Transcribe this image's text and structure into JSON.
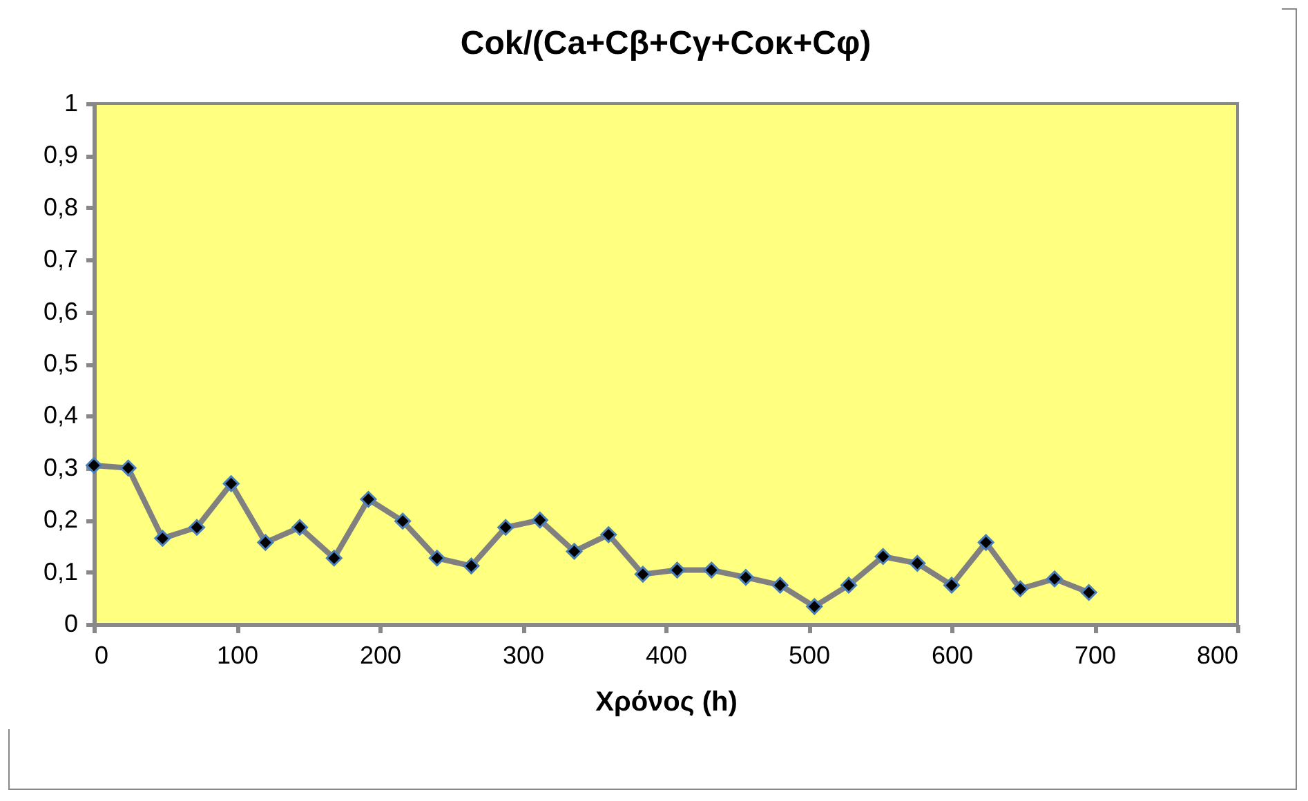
{
  "chart_data": {
    "type": "line",
    "title": "Cok/(Ca+Cβ+Cγ+Coκ+Cφ)",
    "xlabel": "Χρόνος (h)",
    "x": [
      0,
      24,
      48,
      72,
      96,
      120,
      144,
      168,
      192,
      216,
      240,
      264,
      288,
      312,
      336,
      360,
      384,
      408,
      432,
      456,
      480,
      504,
      528,
      552,
      576,
      600,
      624,
      648,
      672,
      696
    ],
    "series": [
      {
        "color": "#808080",
        "values": [
          0.305,
          0.3,
          0.165,
          0.186,
          0.27,
          0.157,
          0.186,
          0.127,
          0.24,
          0.198,
          0.127,
          0.112,
          0.186,
          0.2,
          0.14,
          0.172,
          0.096,
          0.104,
          0.104,
          0.09,
          0.075,
          0.034,
          0.075,
          0.13,
          0.117,
          0.075,
          0.157,
          0.068,
          0.087,
          0.061
        ]
      }
    ],
    "xlim": [
      0,
      800
    ],
    "xticks": [
      0,
      100,
      200,
      300,
      400,
      500,
      600,
      700,
      800
    ],
    "ylim": [
      0,
      1
    ],
    "yticks": [
      0,
      {
        "value": 0.1,
        "label": "0,1"
      },
      {
        "value": 0.2,
        "label": "0,2"
      },
      {
        "value": 0.3,
        "label": "0,3"
      },
      {
        "value": 0.4,
        "label": "0,4"
      },
      {
        "value": 0.5,
        "label": "0,5"
      },
      {
        "value": 0.6,
        "label": "0,6"
      },
      {
        "value": 0.7,
        "label": "0,7"
      },
      {
        "value": 0.8,
        "label": "0,8"
      },
      {
        "value": 0.9,
        "label": "0,9"
      },
      1
    ],
    "grid": false,
    "legend": false,
    "marker": "diamond",
    "line_style": "solid"
  }
}
